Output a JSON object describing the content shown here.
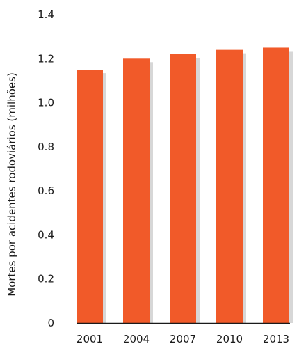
{
  "chart_data": {
    "type": "bar",
    "title": "",
    "xlabel": "",
    "ylabel": "Mortes por acidentes rodoviários (milhões)",
    "categories": [
      "2001",
      "2004",
      "2007",
      "2010",
      "2013"
    ],
    "values": [
      1.15,
      1.2,
      1.22,
      1.24,
      1.25
    ],
    "ylim": [
      0,
      1.4
    ],
    "yticks": [
      "0",
      "0.2",
      "0.4",
      "0.6",
      "0.8",
      "1.0",
      "1.2",
      "1.4"
    ],
    "grid": false,
    "legend": "none",
    "colors": {
      "bar": "#f15a29",
      "bar_shadow": "#d7d7d7",
      "axis": "#1a1a1a",
      "text": "#1a1a1a"
    }
  }
}
